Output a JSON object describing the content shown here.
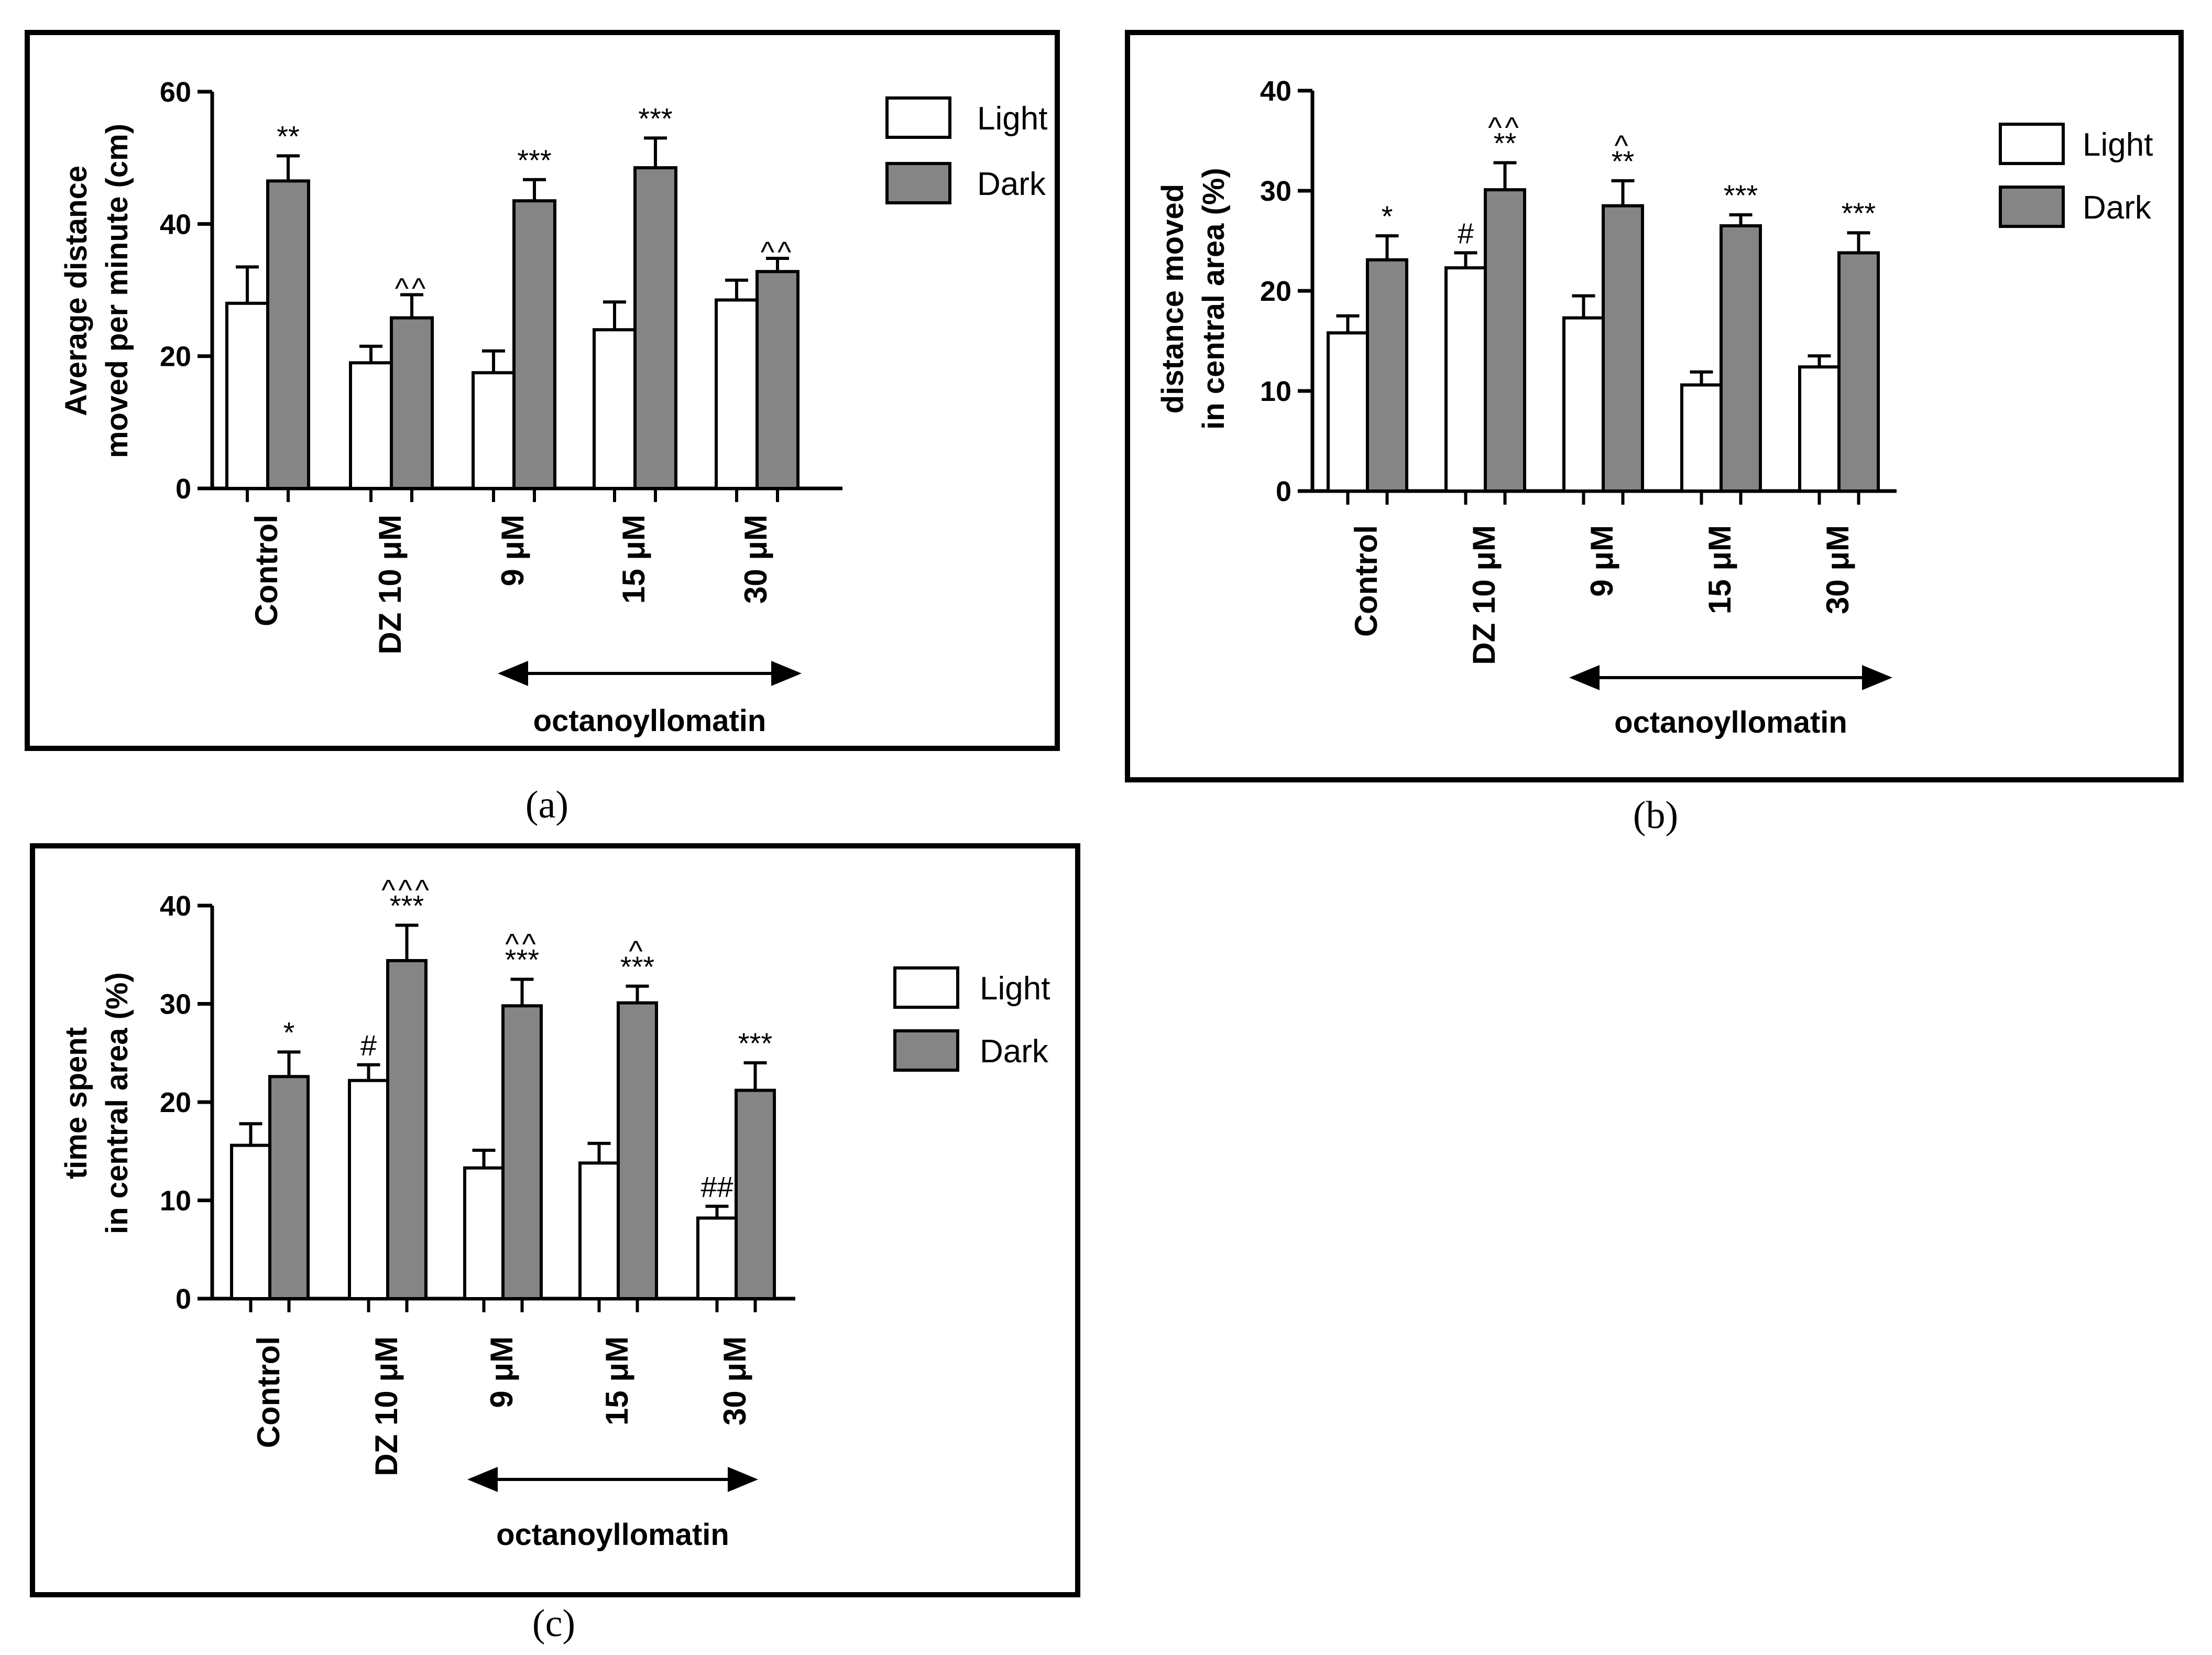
{
  "legend": {
    "light": "Light",
    "dark": "Dark"
  },
  "colors": {
    "light": "#ffffff",
    "dark": "#858585",
    "stroke": "#000000"
  },
  "chart_data": [
    {
      "type": "bar",
      "panel": "a",
      "caption": "(a)",
      "ylabel_lines": [
        "Average distance",
        "moved per minute (cm)"
      ],
      "yticks": [
        0,
        20,
        40,
        60
      ],
      "ylim": [
        0,
        60
      ],
      "categories": [
        "Control",
        "DZ 10 μM",
        "9 μM",
        "15 μM",
        "30 μM"
      ],
      "group_label": "octanoyllomatin",
      "series": [
        {
          "name": "Light",
          "values": [
            28,
            19,
            17.5,
            24,
            28.5
          ],
          "errors": [
            5.5,
            2.5,
            3.3,
            4.2,
            3
          ]
        },
        {
          "name": "Dark",
          "values": [
            46.5,
            25.8,
            43.5,
            48.5,
            32.8
          ],
          "errors": [
            3.8,
            3.5,
            3.2,
            4.5,
            2
          ]
        }
      ],
      "annotations": [
        {
          "label": "**",
          "series": 1,
          "category": 0
        },
        {
          "label": "^^",
          "series": 1,
          "category": 1
        },
        {
          "label": "***",
          "series": 1,
          "category": 2
        },
        {
          "label": "***",
          "series": 1,
          "category": 3
        },
        {
          "label": "^^",
          "series": 1,
          "category": 4
        }
      ]
    },
    {
      "type": "bar",
      "panel": "b",
      "caption": "(b)",
      "ylabel_lines": [
        "distance moved",
        "in central area (%)"
      ],
      "yticks": [
        0,
        10,
        20,
        30,
        40
      ],
      "ylim": [
        0,
        40
      ],
      "categories": [
        "Control",
        "DZ 10 μM",
        "9 μM",
        "15 μM",
        "30 μM"
      ],
      "group_label": "octanoyllomatin",
      "series": [
        {
          "name": "Light",
          "values": [
            15.8,
            22.3,
            17.3,
            10.6,
            12.4
          ],
          "errors": [
            1.7,
            1.5,
            2.2,
            1.3,
            1.1
          ]
        },
        {
          "name": "Dark",
          "values": [
            23.1,
            30.1,
            28.5,
            26.5,
            23.8
          ],
          "errors": [
            2.4,
            2.7,
            2.5,
            1.1,
            2
          ]
        }
      ],
      "annotations": [
        {
          "label": "*",
          "series": 1,
          "category": 0
        },
        {
          "label": "#",
          "series": 0,
          "category": 1
        },
        {
          "label": "**",
          "series": 1,
          "category": 1
        },
        {
          "label": "^^",
          "series": 1,
          "category": 1
        },
        {
          "label": "**",
          "series": 1,
          "category": 2
        },
        {
          "label": "^",
          "series": 1,
          "category": 2
        },
        {
          "label": "***",
          "series": 1,
          "category": 3
        },
        {
          "label": "***",
          "series": 1,
          "category": 4
        }
      ]
    },
    {
      "type": "bar",
      "panel": "c",
      "caption": "(c)",
      "ylabel_lines": [
        "time spent",
        "in central area (%)"
      ],
      "yticks": [
        0,
        10,
        20,
        30,
        40
      ],
      "ylim": [
        0,
        40
      ],
      "categories": [
        "Control",
        "DZ 10 μM",
        "9 μM",
        "15 μM",
        "30 μM"
      ],
      "group_label": "octanoyllomatin",
      "series": [
        {
          "name": "Light",
          "values": [
            15.6,
            22.2,
            13.3,
            13.8,
            8.2
          ],
          "errors": [
            2.2,
            1.6,
            1.8,
            2,
            1.2
          ]
        },
        {
          "name": "Dark",
          "values": [
            22.6,
            34.4,
            29.8,
            30.1,
            21.2
          ],
          "errors": [
            2.5,
            3.6,
            2.7,
            1.7,
            2.8
          ]
        }
      ],
      "annotations": [
        {
          "label": "*",
          "series": 1,
          "category": 0
        },
        {
          "label": "#",
          "series": 0,
          "category": 1
        },
        {
          "label": "***",
          "series": 1,
          "category": 1
        },
        {
          "label": "^^^",
          "series": 1,
          "category": 1
        },
        {
          "label": "***",
          "series": 1,
          "category": 2
        },
        {
          "label": "^^",
          "series": 1,
          "category": 2
        },
        {
          "label": "***",
          "series": 1,
          "category": 3
        },
        {
          "label": "^",
          "series": 1,
          "category": 3
        },
        {
          "label": "##",
          "series": 0,
          "category": 4
        },
        {
          "label": "***",
          "series": 1,
          "category": 4
        }
      ]
    }
  ]
}
